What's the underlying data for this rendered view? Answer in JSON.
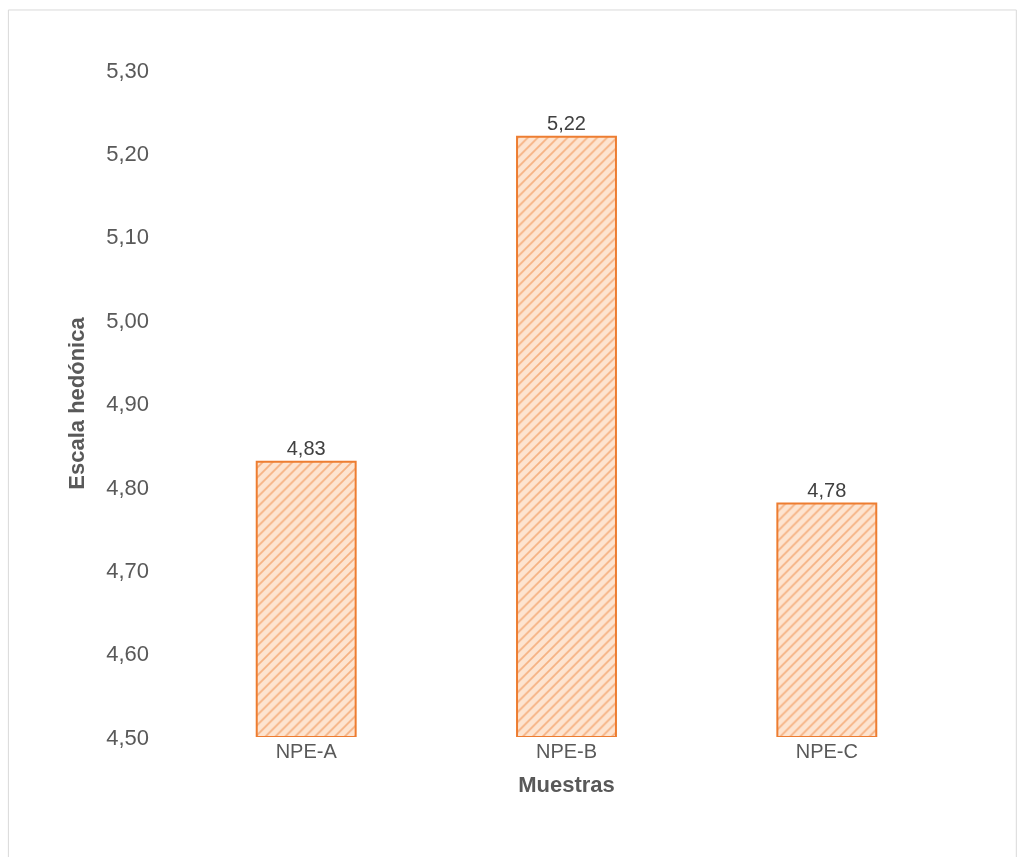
{
  "chart_data": {
    "type": "bar",
    "xlabel": "Muestras",
    "ylabel": "Escala hedónica",
    "categories": [
      "NPE-A",
      "NPE-B",
      "NPE-C"
    ],
    "values": [
      4.83,
      5.22,
      4.78
    ],
    "color": "#ed7d31",
    "value_labels": [
      "4,83",
      "5,22",
      "4,78"
    ],
    "ylim": [
      4.5,
      5.3
    ],
    "grid": false,
    "legend": false,
    "yticks": [
      {
        "value": 4.5,
        "label": "4,50"
      },
      {
        "value": 4.6,
        "label": "4,60"
      },
      {
        "value": 4.7,
        "label": "4,70"
      },
      {
        "value": 4.8,
        "label": "4,80"
      },
      {
        "value": 4.9,
        "label": "4,90"
      },
      {
        "value": 5.0,
        "label": "5,00"
      },
      {
        "value": 5.1,
        "label": "5,10"
      },
      {
        "value": 5.2,
        "label": "5,20"
      },
      {
        "value": 5.3,
        "label": "5,30"
      }
    ]
  }
}
